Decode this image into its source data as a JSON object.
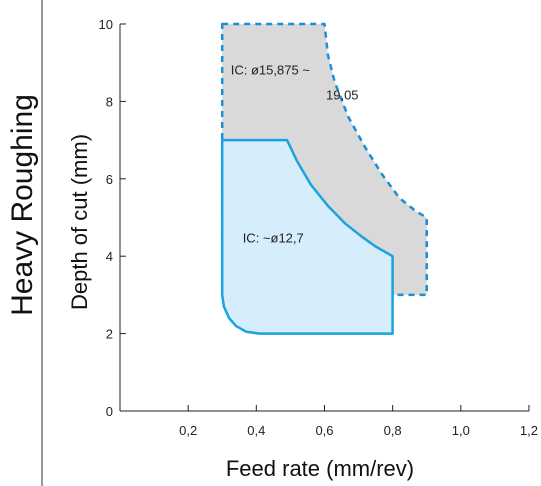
{
  "chart_data": {
    "type": "area",
    "side_title": "Heavy Roughing",
    "xlabel": "Feed rate (mm/rev)",
    "ylabel": "Depth of cut (mm)",
    "xlim": [
      0,
      1.2
    ],
    "ylim": [
      0,
      10
    ],
    "x_ticks": [
      0.2,
      0.4,
      0.6,
      0.8,
      1.0,
      1.2
    ],
    "x_tick_labels": [
      "0,2",
      "0,4",
      "0,6",
      "0,8",
      "1,0",
      "1,2"
    ],
    "y_ticks": [
      0,
      2,
      4,
      6,
      8,
      10
    ],
    "y_tick_labels": [
      "0",
      "2",
      "4",
      "6",
      "8",
      "10"
    ],
    "grid": false,
    "regions": [
      {
        "label_line1": "IC: ø15,875 ~",
        "label_line2": "19,05",
        "style": "dashed",
        "fill": "#d9d9d9",
        "stroke": "#1a8fd6",
        "outline": [
          [
            0.3,
            10
          ],
          [
            0.6,
            10
          ],
          [
            0.61,
            9.2
          ],
          [
            0.63,
            8.5
          ],
          [
            0.67,
            7.6
          ],
          [
            0.72,
            6.8
          ],
          [
            0.77,
            6.1
          ],
          [
            0.82,
            5.5
          ],
          [
            0.87,
            5.15
          ],
          [
            0.9,
            5.0
          ],
          [
            0.9,
            3.0
          ],
          [
            0.4,
            3.0
          ],
          [
            0.36,
            3.1
          ],
          [
            0.33,
            3.4
          ],
          [
            0.31,
            3.8
          ],
          [
            0.3,
            4.3
          ],
          [
            0.3,
            10
          ]
        ]
      },
      {
        "label_line1": "IC: ~ø12,7",
        "label_line2": "",
        "style": "solid",
        "fill": "#d6edfb",
        "stroke": "#1aa3e0",
        "outline": [
          [
            0.3,
            7.0
          ],
          [
            0.49,
            7.0
          ],
          [
            0.52,
            6.45
          ],
          [
            0.56,
            5.85
          ],
          [
            0.61,
            5.3
          ],
          [
            0.66,
            4.85
          ],
          [
            0.71,
            4.5
          ],
          [
            0.75,
            4.25
          ],
          [
            0.8,
            4.0
          ],
          [
            0.8,
            2.0
          ],
          [
            0.41,
            2.0
          ],
          [
            0.37,
            2.05
          ],
          [
            0.34,
            2.2
          ],
          [
            0.32,
            2.4
          ],
          [
            0.305,
            2.7
          ],
          [
            0.3,
            3.0
          ],
          [
            0.3,
            7.0
          ]
        ]
      }
    ]
  }
}
